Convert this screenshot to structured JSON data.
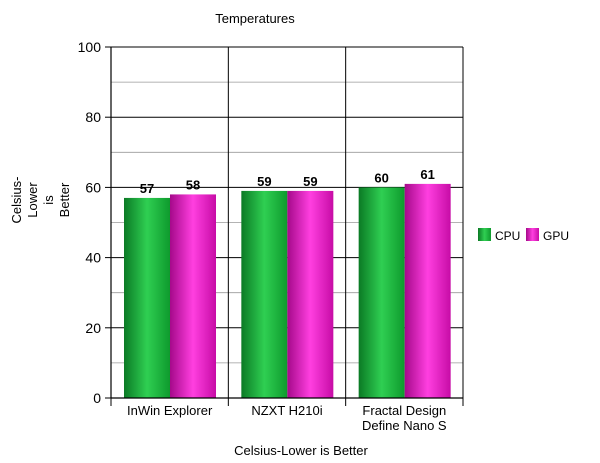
{
  "colors": {
    "cpu": "#10a030",
    "gpu": "#dd10b8",
    "grid_major": "#000000",
    "grid_minor": "#9a9a9a"
  },
  "chart_data": {
    "type": "bar",
    "title": "Temperatures",
    "xlabel": "Celsius-Lower is Better",
    "ylabel_lines": [
      "Celsius-",
      "Lower",
      "is",
      "Better"
    ],
    "categories": [
      [
        "InWin Explorer"
      ],
      [
        "NZXT H210i"
      ],
      [
        "Fractal Design",
        "Define Nano S"
      ]
    ],
    "series": [
      {
        "name": "CPU",
        "values": [
          57,
          59,
          60
        ]
      },
      {
        "name": "GPU",
        "values": [
          58,
          59,
          61
        ]
      }
    ],
    "ylim": [
      0,
      100
    ],
    "yticks": [
      0,
      20,
      40,
      60,
      80,
      100
    ],
    "minor_step": 10,
    "grid": true,
    "legend": "right",
    "data_labels": true
  }
}
